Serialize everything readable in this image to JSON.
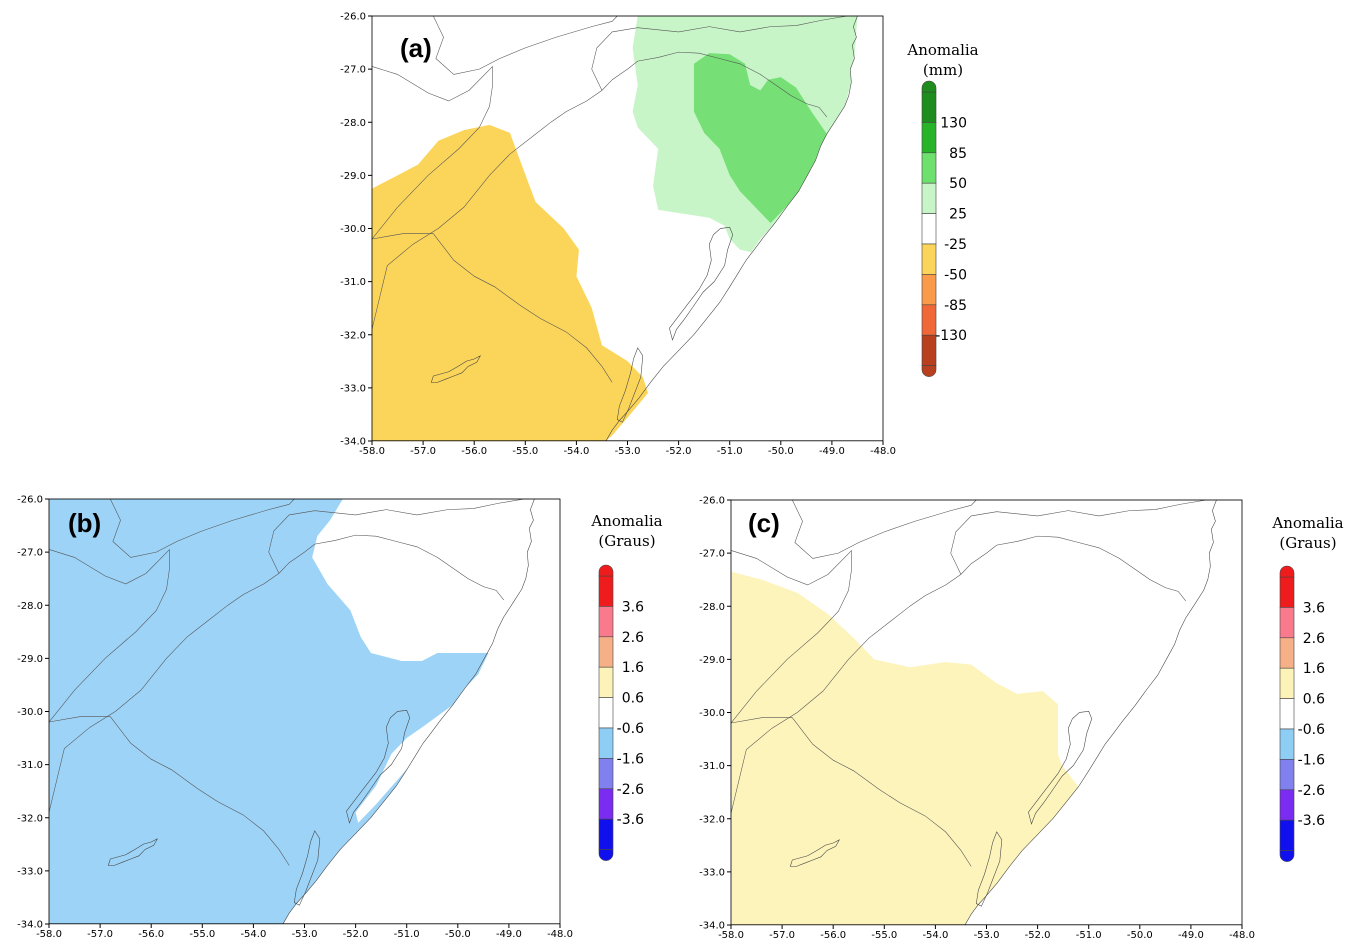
{
  "panels": [
    {
      "id": "a",
      "label": "(a)",
      "legend_title": [
        "Anomalia",
        "(mm)"
      ],
      "legend_labels": [
        "130",
        "85",
        "50",
        "25",
        "-25",
        "-50",
        "-85",
        "-130"
      ],
      "legend_colors": [
        "#1e8c1e",
        "#28b428",
        "#6ee06e",
        "#c8f5c8",
        "#ffffff",
        "#fbd55a",
        "#f99b4a",
        "#f06838",
        "#b8401e"
      ],
      "colors": {
        "dry": "#fbd55a",
        "wet_light": "#c8f5c8",
        "wet_mid": "#76e076"
      }
    },
    {
      "id": "b",
      "label": "(b)",
      "legend_title": [
        "Anomalia",
        "(Graus)"
      ],
      "legend_labels": [
        "3.6",
        "2.6",
        "1.6",
        "0.6",
        "-0.6",
        "-1.6",
        "-2.6",
        "-3.6"
      ],
      "legend_colors": [
        "#ee1c1c",
        "#f87a8c",
        "#f6b088",
        "#fdf2b8",
        "#ffffff",
        "#8ecdf4",
        "#8080ee",
        "#7a2cf0",
        "#1010ee"
      ],
      "colors": {
        "cold": "#9dd3f7"
      }
    },
    {
      "id": "c",
      "label": "(c)",
      "legend_title": [
        "Anomalia",
        "(Graus)"
      ],
      "legend_labels": [
        "3.6",
        "2.6",
        "1.6",
        "0.6",
        "-0.6",
        "-1.6",
        "-2.6",
        "-3.6"
      ],
      "legend_colors": [
        "#ee1c1c",
        "#f87a8c",
        "#f6b088",
        "#fdf2b8",
        "#ffffff",
        "#8ecdf4",
        "#8080ee",
        "#7a2cf0",
        "#1010ee"
      ],
      "colors": {
        "warm": "#fdf4bb"
      }
    }
  ],
  "x_ticks": [
    "-58.0",
    "-57.0",
    "-56.0",
    "-55.0",
    "-54.0",
    "-53.0",
    "-52.0",
    "-51.0",
    "-50.0",
    "-49.0",
    "-48.0"
  ],
  "y_ticks": [
    "-26.0",
    "-27.0",
    "-28.0",
    "-29.0",
    "-30.0",
    "-31.0",
    "-32.0",
    "-33.0",
    "-34.0"
  ]
}
